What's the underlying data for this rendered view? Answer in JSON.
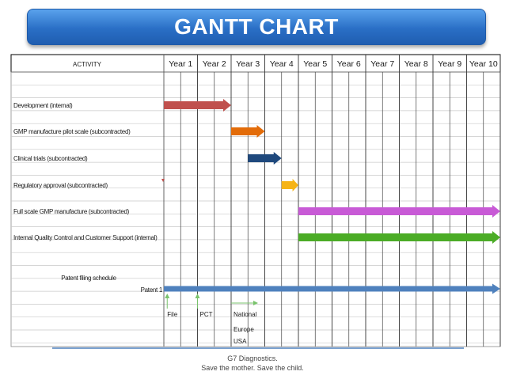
{
  "title": "GANTT CHART",
  "header": {
    "activity_label": "ACTIVITY"
  },
  "years": [
    "Year 1",
    "Year 2",
    "Year 3",
    "Year 4",
    "Year 5",
    "Year 6",
    "Year 7",
    "Year 8",
    "Year 9",
    "Year 10"
  ],
  "chart_data": {
    "type": "gantt",
    "tasks": [
      {
        "label": "Development (internal)",
        "start": 0,
        "end": 2,
        "color": "#c0504d"
      },
      {
        "label": "GMP manufacture pilot scale (subcontracted)",
        "start": 2,
        "end": 3,
        "color": "#e36c09"
      },
      {
        "label": "Clinical trials (subcontracted)",
        "start": 2.5,
        "end": 3.5,
        "color": "#1f497d"
      },
      {
        "label": "Regulatory approval (subcontracted)",
        "start": 3.5,
        "end": 4,
        "color": "#f6b417"
      },
      {
        "label": "Full scale GMP manufacture (subcontracted)",
        "start": 4,
        "end": 10,
        "color": "#c85ad6"
      },
      {
        "label": "Internal Quality Control and Customer Support (internal)",
        "start": 4,
        "end": 10,
        "color": "#4bac26"
      }
    ],
    "patent": {
      "section_label": "Patent filing schedule",
      "row_label": "Patent 1",
      "start": 0,
      "end": 10,
      "color": "#4f81bd",
      "milestones": [
        {
          "label": "File",
          "at": 0.1
        },
        {
          "label": "PCT",
          "at": 1.0
        },
        {
          "label": "National",
          "at": 2.0
        }
      ],
      "regions": [
        "Europe",
        "USA"
      ]
    }
  },
  "footer": {
    "line1": "G7 Diagnostics.",
    "line2": "Save the mother. Save the child."
  }
}
